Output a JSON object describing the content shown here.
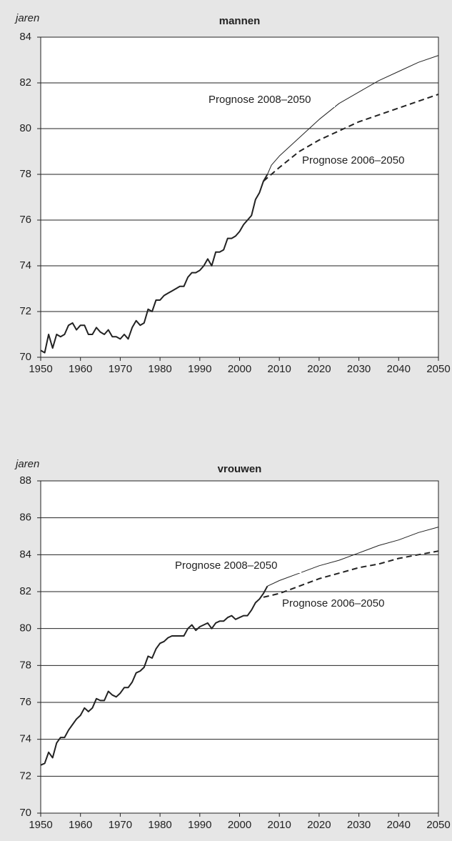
{
  "chart_data": [
    {
      "type": "line",
      "title": "mannen",
      "y_label": "jaren",
      "xlim": [
        1950,
        2050
      ],
      "xticks": [
        1950,
        1960,
        1970,
        1980,
        1990,
        2000,
        2010,
        2020,
        2030,
        2040,
        2050
      ],
      "ylim": [
        70,
        84
      ],
      "yticks": [
        70,
        72,
        74,
        76,
        78,
        80,
        82,
        84
      ],
      "grid": true,
      "series": [
        {
          "color": "#222222",
          "linewidth": 2,
          "dashed": false,
          "x": [
            1950,
            1951,
            1952,
            1953,
            1954,
            1955,
            1956,
            1957,
            1958,
            1959,
            1960,
            1961,
            1962,
            1963,
            1964,
            1965,
            1966,
            1967,
            1968,
            1969,
            1970,
            1971,
            1972,
            1973,
            1974,
            1975,
            1976,
            1977,
            1978,
            1979,
            1980,
            1981,
            1982,
            1983,
            1984,
            1985,
            1986,
            1987,
            1988,
            1989,
            1990,
            1991,
            1992,
            1993,
            1994,
            1995,
            1996,
            1997,
            1998,
            1999,
            2000,
            2001,
            2002,
            2003,
            2004,
            2005,
            2006,
            2007
          ],
          "values": [
            70.3,
            70.2,
            71.0,
            70.4,
            71.0,
            70.9,
            71.0,
            71.4,
            71.5,
            71.2,
            71.4,
            71.4,
            71.0,
            71.0,
            71.3,
            71.1,
            71.0,
            71.2,
            70.9,
            70.9,
            70.8,
            71.0,
            70.8,
            71.3,
            71.6,
            71.4,
            71.5,
            72.1,
            72.0,
            72.5,
            72.5,
            72.7,
            72.8,
            72.9,
            73.0,
            73.1,
            73.1,
            73.5,
            73.7,
            73.7,
            73.8,
            74.0,
            74.3,
            74.0,
            74.6,
            74.6,
            74.7,
            75.2,
            75.2,
            75.3,
            75.5,
            75.8,
            76.0,
            76.2,
            76.9,
            77.2,
            77.7,
            78.0
          ]
        },
        {
          "name": "Prognose 2008–2050",
          "color": "#222222",
          "linewidth": 1,
          "dashed": false,
          "x": [
            2007,
            2008,
            2010,
            2015,
            2020,
            2025,
            2030,
            2035,
            2040,
            2045,
            2050
          ],
          "values": [
            78.0,
            78.4,
            78.8,
            79.6,
            80.4,
            81.1,
            81.6,
            82.1,
            82.5,
            82.9,
            83.2
          ]
        },
        {
          "name": "Prognose 2006–2050",
          "color": "#222222",
          "linewidth": 2,
          "dashed": true,
          "x": [
            2006,
            2010,
            2015,
            2020,
            2025,
            2030,
            2035,
            2040,
            2045,
            2050
          ],
          "values": [
            77.7,
            78.3,
            79.0,
            79.5,
            79.9,
            80.3,
            80.6,
            80.9,
            81.2,
            81.5
          ]
        }
      ]
    },
    {
      "type": "line",
      "title": "vrouwen",
      "y_label": "jaren",
      "xlim": [
        1950,
        2050
      ],
      "xticks": [
        1950,
        1960,
        1970,
        1980,
        1990,
        2000,
        2010,
        2020,
        2030,
        2040,
        2050
      ],
      "ylim": [
        70,
        88
      ],
      "yticks": [
        70,
        72,
        74,
        76,
        78,
        80,
        82,
        84,
        86,
        88
      ],
      "grid": true,
      "series": [
        {
          "color": "#222222",
          "linewidth": 2,
          "dashed": false,
          "x": [
            1950,
            1951,
            1952,
            1953,
            1954,
            1955,
            1956,
            1957,
            1958,
            1959,
            1960,
            1961,
            1962,
            1963,
            1964,
            1965,
            1966,
            1967,
            1968,
            1969,
            1970,
            1971,
            1972,
            1973,
            1974,
            1975,
            1976,
            1977,
            1978,
            1979,
            1980,
            1981,
            1982,
            1983,
            1984,
            1985,
            1986,
            1987,
            1988,
            1989,
            1990,
            1991,
            1992,
            1993,
            1994,
            1995,
            1996,
            1997,
            1998,
            1999,
            2000,
            2001,
            2002,
            2003,
            2004,
            2005,
            2006,
            2007
          ],
          "values": [
            72.6,
            72.7,
            73.3,
            73.0,
            73.8,
            74.1,
            74.1,
            74.5,
            74.8,
            75.1,
            75.3,
            75.7,
            75.5,
            75.7,
            76.2,
            76.1,
            76.1,
            76.6,
            76.4,
            76.3,
            76.5,
            76.8,
            76.8,
            77.1,
            77.6,
            77.7,
            77.9,
            78.5,
            78.4,
            78.9,
            79.2,
            79.3,
            79.5,
            79.6,
            79.6,
            79.6,
            79.6,
            80.0,
            80.2,
            79.9,
            80.1,
            80.2,
            80.3,
            80.0,
            80.3,
            80.4,
            80.4,
            80.6,
            80.7,
            80.5,
            80.6,
            80.7,
            80.7,
            81.0,
            81.4,
            81.6,
            81.9,
            82.3
          ]
        },
        {
          "name": "Prognose 2008–2050",
          "color": "#222222",
          "linewidth": 1,
          "dashed": false,
          "x": [
            2007,
            2010,
            2015,
            2020,
            2025,
            2030,
            2035,
            2040,
            2045,
            2050
          ],
          "values": [
            82.3,
            82.6,
            83.0,
            83.4,
            83.7,
            84.1,
            84.5,
            84.8,
            85.2,
            85.5
          ]
        },
        {
          "name": "Prognose 2006–2050",
          "color": "#222222",
          "linewidth": 2,
          "dashed": true,
          "x": [
            2006,
            2010,
            2015,
            2020,
            2025,
            2030,
            2035,
            2040,
            2045,
            2050
          ],
          "values": [
            81.7,
            81.9,
            82.3,
            82.7,
            83.0,
            83.3,
            83.5,
            83.8,
            84.0,
            84.2
          ]
        }
      ]
    }
  ]
}
